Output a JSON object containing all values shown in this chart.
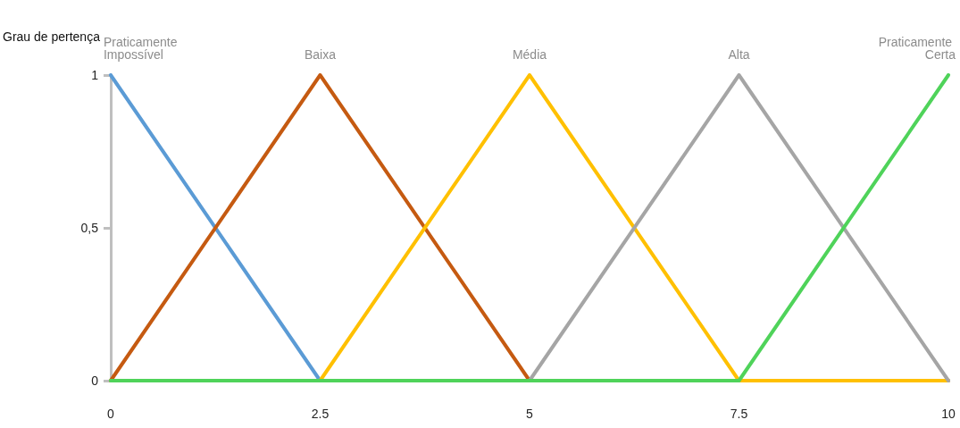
{
  "chart_data": {
    "type": "line",
    "ylabel": "Grau de pertença",
    "xlim": [
      0,
      10
    ],
    "xticks": [
      0,
      2.5,
      5,
      7.5,
      10
    ],
    "ylim": [
      0,
      1
    ],
    "yticks": [
      0,
      {
        "value": 0.5,
        "label": "0,5"
      },
      1
    ],
    "series": [
      {
        "name": "Praticamente Impossível",
        "color": "#5b9bd5",
        "x": [
          0,
          2.5
        ],
        "values": [
          1,
          0
        ]
      },
      {
        "name": "Baixa",
        "color": "#c55a11",
        "x": [
          0,
          2.5,
          5,
          10
        ],
        "values": [
          0,
          1,
          0,
          0
        ]
      },
      {
        "name": "Média",
        "color": "#ffc000",
        "x": [
          0,
          2.5,
          5,
          7.5,
          10
        ],
        "values": [
          0,
          0,
          1,
          0,
          0
        ]
      },
      {
        "name": "Alta",
        "color": "#a5a5a5",
        "x": [
          0,
          5,
          7.5,
          10
        ],
        "values": [
          0,
          0,
          1,
          0
        ]
      },
      {
        "name": "Praticamente Certa",
        "color": "#4fd35a",
        "x": [
          0,
          7.5,
          10
        ],
        "values": [
          0,
          0,
          1
        ]
      }
    ]
  }
}
